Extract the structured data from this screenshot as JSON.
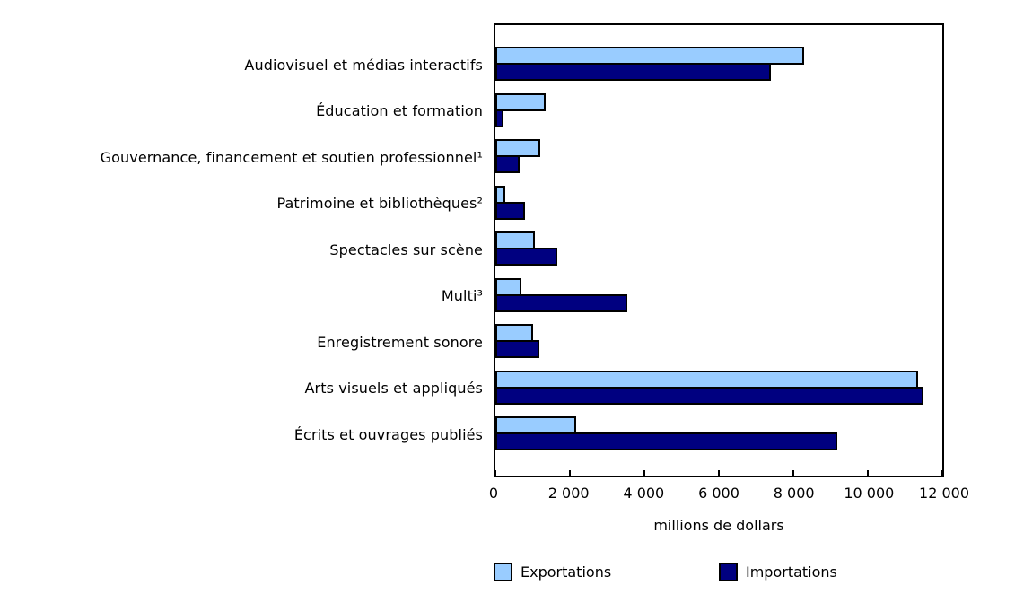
{
  "chart_data": {
    "type": "bar",
    "orientation": "horizontal",
    "title": "",
    "xlabel": "millions de dollars",
    "ylabel": "",
    "xlim": [
      0,
      12000
    ],
    "grid": false,
    "legend_position": "bottom",
    "categories": [
      "Audiovisuel et médias interactifs",
      "Éducation et formation",
      "Gouvernance, financement et soutien professionnel¹",
      "Patrimoine et bibliothèques²",
      "Spectacles sur scène",
      "Multi³",
      "Enregistrement sonore",
      "Arts visuels et appliqués",
      "Écrits et ouvrages publiés"
    ],
    "series": [
      {
        "name": "Exportations",
        "color": "#99CCFF",
        "values": [
          8300,
          1350,
          1210,
          260,
          1050,
          700,
          1000,
          11340,
          2180
        ]
      },
      {
        "name": "Importations",
        "color": "#000080",
        "values": [
          7400,
          220,
          640,
          800,
          1670,
          3550,
          1180,
          11500,
          9190
        ]
      }
    ],
    "xticks": [
      0,
      2000,
      4000,
      6000,
      8000,
      10000,
      12000
    ],
    "xtick_labels": [
      "0",
      "2 000",
      "4 000",
      "6 000",
      "8 000",
      "10 000",
      "12 000"
    ]
  },
  "colors": {
    "bar_border": "#000000",
    "axis": "#000000",
    "background": "#ffffff"
  }
}
